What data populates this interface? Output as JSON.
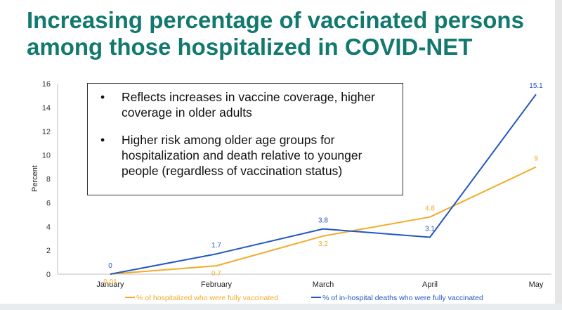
{
  "slide": {
    "title": "Increasing percentage of vaccinated persons among those hospitalized in COVID-NET"
  },
  "callout": {
    "bullets": [
      "Reflects increases in vaccine coverage, higher coverage in older adults",
      "Higher risk among older age groups for hospitalization and death relative to younger people (regardless of vaccination status)"
    ]
  },
  "chart_data": {
    "type": "line",
    "title": "",
    "xlabel": "",
    "ylabel": "Percent",
    "categories": [
      "January",
      "February",
      "March",
      "April",
      "May"
    ],
    "ylim": [
      0,
      16
    ],
    "yticks": [
      0,
      2,
      4,
      6,
      8,
      10,
      12,
      14,
      16
    ],
    "grid": false,
    "legend_position": "bottom",
    "series": [
      {
        "name": "% of hospitalized who were fully vaccinated",
        "color": "#f0ac2a",
        "values": [
          0.01,
          0.7,
          3.2,
          4.8,
          9
        ],
        "labels": [
          "0.01",
          "0.7",
          "3.2",
          "4.8",
          "9"
        ],
        "label_side": [
          "below",
          "below",
          "below",
          "above",
          "above"
        ]
      },
      {
        "name": "% of in-hospital deaths who were fully vaccinated",
        "color": "#2456c0",
        "values": [
          0,
          1.7,
          3.8,
          3.1,
          15.1
        ],
        "labels": [
          "0",
          "1.7",
          "3.8",
          "3.1",
          "15.1"
        ],
        "label_side": [
          "above",
          "above",
          "above",
          "above",
          "above"
        ]
      }
    ]
  }
}
